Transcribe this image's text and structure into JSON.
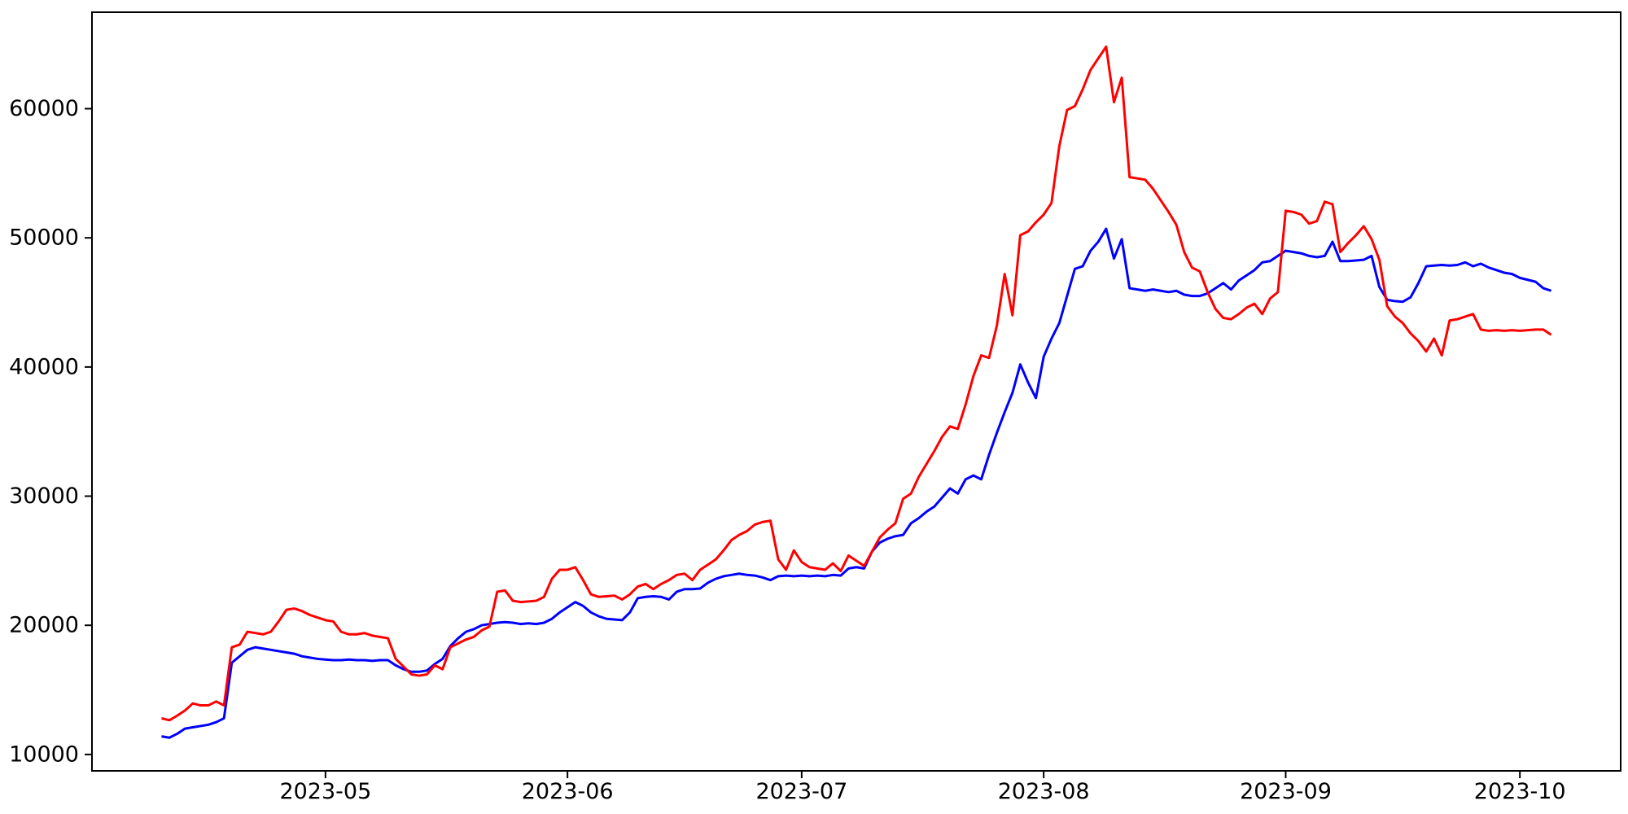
{
  "chart_data": {
    "type": "line",
    "title": "",
    "xlabel": "",
    "ylabel": "",
    "grid": false,
    "legend": "none",
    "background_color": "#ffffff",
    "frame_color": "#000000",
    "x_unit": "days",
    "n_points": 179,
    "x_tick_labels": [
      "2023-05",
      "2023-06",
      "2023-07",
      "2023-08",
      "2023-09",
      "2023-10"
    ],
    "x_tick_indices": [
      21,
      52,
      82,
      113,
      144,
      174
    ],
    "y_tick_labels": [
      "10000",
      "20000",
      "30000",
      "40000",
      "50000",
      "60000"
    ],
    "y_tick_values": [
      10000,
      20000,
      30000,
      40000,
      50000,
      60000
    ],
    "ylim": [
      8730,
      67470
    ],
    "x_margin_fraction": 0.0455,
    "series": [
      {
        "name": "blue",
        "color": "#0000ff",
        "values": [
          11400,
          11300,
          11600,
          12000,
          12100,
          12200,
          12300,
          12500,
          12800,
          17100,
          17600,
          18100,
          18300,
          18200,
          18100,
          18000,
          17900,
          17800,
          17600,
          17500,
          17400,
          17350,
          17300,
          17300,
          17350,
          17300,
          17300,
          17250,
          17300,
          17300,
          16900,
          16600,
          16400,
          16400,
          16500,
          17000,
          17400,
          18400,
          19000,
          19500,
          19700,
          20000,
          20100,
          20200,
          20250,
          20200,
          20100,
          20150,
          20100,
          20200,
          20500,
          21000,
          21400,
          21800,
          21500,
          21000,
          20700,
          20500,
          20450,
          20400,
          21000,
          22100,
          22200,
          22250,
          22200,
          22000,
          22600,
          22800,
          22800,
          22850,
          23300,
          23600,
          23800,
          23900,
          24000,
          23900,
          23850,
          23700,
          23500,
          23800,
          23850,
          23800,
          23850,
          23800,
          23850,
          23800,
          23900,
          23850,
          24400,
          24500,
          24400,
          25700,
          26400,
          26700,
          26900,
          27000,
          27900,
          28300,
          28800,
          29200,
          29900,
          30600,
          30200,
          31300,
          31600,
          31300,
          33200,
          34900,
          36500,
          38000,
          40200,
          38800,
          37600,
          40800,
          42200,
          43400,
          45500,
          47600,
          47800,
          49000,
          49700,
          50700,
          48400,
          49900,
          46100,
          46000,
          45900,
          46000,
          45900,
          45800,
          45900,
          45600,
          45500,
          45500,
          45700,
          46100,
          46500,
          46000,
          46700,
          47100,
          47500,
          48100,
          48200,
          48600,
          49000,
          48900,
          48800,
          48600,
          48500,
          48600,
          49700,
          48200,
          48200,
          48250,
          48300,
          48600,
          46200,
          45200,
          45100,
          45050,
          45400,
          46500,
          47800,
          47850,
          47900,
          47850,
          47900,
          48100,
          47800,
          48000,
          47700,
          47500,
          47300,
          47200,
          46900,
          46750,
          46600,
          46100,
          45900
        ]
      },
      {
        "name": "red",
        "color": "#ff0000",
        "values": [
          12800,
          12650,
          13000,
          13400,
          13950,
          13800,
          13800,
          14100,
          13800,
          18300,
          18500,
          19500,
          19400,
          19300,
          19500,
          20300,
          21200,
          21300,
          21100,
          20800,
          20600,
          20400,
          20300,
          19500,
          19300,
          19300,
          19400,
          19200,
          19100,
          19000,
          17400,
          16800,
          16200,
          16100,
          16200,
          16900,
          16600,
          18300,
          18600,
          18900,
          19100,
          19600,
          19900,
          22600,
          22700,
          21900,
          21800,
          21850,
          21900,
          22200,
          23600,
          24300,
          24300,
          24500,
          23500,
          22400,
          22200,
          22250,
          22300,
          22000,
          22400,
          23000,
          23200,
          22800,
          23200,
          23500,
          23900,
          24000,
          23500,
          24300,
          24700,
          25100,
          25800,
          26600,
          27000,
          27300,
          27800,
          28000,
          28100,
          25100,
          24300,
          25800,
          24900,
          24500,
          24400,
          24300,
          24800,
          24200,
          25400,
          25000,
          24600,
          25700,
          26800,
          27400,
          27900,
          29800,
          30200,
          31500,
          32500,
          33500,
          34600,
          35400,
          35200,
          37100,
          39300,
          40900,
          40700,
          43200,
          47200,
          44000,
          50200,
          50500,
          51200,
          51800,
          52700,
          57100,
          59900,
          60200,
          61500,
          63000,
          63900,
          64800,
          60500,
          62400,
          54700,
          54600,
          54500,
          53800,
          52900,
          52000,
          51000,
          48900,
          47700,
          47400,
          45800,
          44500,
          43800,
          43700,
          44100,
          44600,
          44900,
          44100,
          45300,
          45800,
          52100,
          52000,
          51800,
          51100,
          51300,
          52800,
          52600,
          48900,
          49600,
          50200,
          50900,
          49900,
          48300,
          44700,
          43900,
          43400,
          42600,
          42000,
          41200,
          42200,
          40900,
          43600,
          43700,
          43900,
          44100,
          42900,
          42800,
          42850,
          42800,
          42850,
          42800,
          42850,
          42900,
          42900,
          42500
        ]
      }
    ]
  },
  "style": {
    "line_width": 3,
    "tick_length": 9,
    "tick_width": 2,
    "frame_width": 2,
    "tick_font_size": 27,
    "tick_color": "#000000",
    "label_color": "#000000"
  }
}
